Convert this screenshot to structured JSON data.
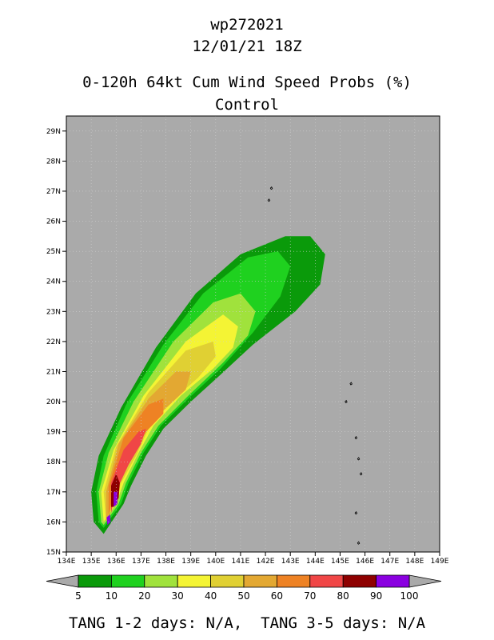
{
  "header": {
    "storm_id": "wp272021",
    "datetime": "12/01/21 18Z",
    "product": "0-120h 64kt Cum Wind Speed Probs (%)",
    "run": "Control"
  },
  "chart_data": {
    "type": "contour-map",
    "x_axis": {
      "range": [
        134,
        149
      ],
      "ticks": [
        "134E",
        "135E",
        "136E",
        "137E",
        "138E",
        "139E",
        "140E",
        "141E",
        "142E",
        "143E",
        "144E",
        "145E",
        "146E",
        "147E",
        "148E",
        "149E"
      ]
    },
    "y_axis": {
      "range": [
        15,
        29.5
      ],
      "ticks": [
        "15N",
        "16N",
        "17N",
        "18N",
        "19N",
        "20N",
        "21N",
        "22N",
        "23N",
        "24N",
        "25N",
        "26N",
        "27N",
        "28N",
        "29N"
      ]
    },
    "background_color": "#aaaaaa",
    "legend": {
      "placement": "bottom",
      "levels": [
        5,
        10,
        20,
        30,
        40,
        50,
        60,
        70,
        80,
        90,
        100
      ],
      "colors": [
        "#0a9a0a",
        "#1fd11f",
        "#a0e23c",
        "#f4f434",
        "#e0d033",
        "#e3a832",
        "#ee8224",
        "#f04646",
        "#8e0000",
        "#8a00e0"
      ]
    },
    "contours": [
      {
        "level": 5,
        "polygon": [
          [
            135.1,
            16.0
          ],
          [
            135.0,
            17.0
          ],
          [
            135.3,
            18.2
          ],
          [
            136.2,
            19.8
          ],
          [
            137.6,
            21.8
          ],
          [
            139.2,
            23.6
          ],
          [
            141.0,
            24.9
          ],
          [
            142.8,
            25.5
          ],
          [
            143.8,
            25.5
          ],
          [
            144.4,
            24.9
          ],
          [
            144.2,
            23.9
          ],
          [
            143.2,
            23.0
          ],
          [
            141.5,
            21.9
          ],
          [
            140.2,
            20.9
          ],
          [
            139.0,
            20.0
          ],
          [
            137.9,
            19.1
          ],
          [
            137.2,
            18.2
          ],
          [
            136.6,
            17.2
          ],
          [
            136.3,
            16.6
          ],
          [
            135.5,
            15.6
          ]
        ]
      },
      {
        "level": 10,
        "polygon": [
          [
            135.3,
            16.0
          ],
          [
            135.2,
            17.0
          ],
          [
            135.5,
            18.2
          ],
          [
            136.4,
            19.9
          ],
          [
            137.9,
            21.9
          ],
          [
            139.5,
            23.6
          ],
          [
            141.3,
            24.8
          ],
          [
            142.5,
            25.0
          ],
          [
            143.0,
            24.5
          ],
          [
            142.6,
            23.5
          ],
          [
            141.5,
            22.3
          ],
          [
            140.2,
            21.1
          ],
          [
            138.9,
            20.1
          ],
          [
            137.8,
            19.2
          ],
          [
            137.1,
            18.3
          ],
          [
            136.5,
            17.3
          ],
          [
            136.2,
            16.6
          ],
          [
            135.5,
            15.8
          ]
        ]
      },
      {
        "level": 20,
        "polygon": [
          [
            135.4,
            16.0
          ],
          [
            135.3,
            17.0
          ],
          [
            135.7,
            18.3
          ],
          [
            136.7,
            20.0
          ],
          [
            138.3,
            22.0
          ],
          [
            139.9,
            23.3
          ],
          [
            141.0,
            23.6
          ],
          [
            141.6,
            23.0
          ],
          [
            141.3,
            22.2
          ],
          [
            140.3,
            21.3
          ],
          [
            138.9,
            20.2
          ],
          [
            137.7,
            19.2
          ],
          [
            137.0,
            18.3
          ],
          [
            136.4,
            17.3
          ],
          [
            136.1,
            16.6
          ],
          [
            135.5,
            15.9
          ]
        ]
      },
      {
        "level": 30,
        "polygon": [
          [
            135.5,
            16.0
          ],
          [
            135.4,
            17.0
          ],
          [
            135.9,
            18.4
          ],
          [
            137.1,
            20.2
          ],
          [
            138.8,
            22.0
          ],
          [
            140.3,
            22.9
          ],
          [
            140.9,
            22.5
          ],
          [
            140.7,
            21.8
          ],
          [
            139.9,
            21.1
          ],
          [
            138.6,
            20.2
          ],
          [
            137.5,
            19.2
          ],
          [
            136.9,
            18.3
          ],
          [
            136.3,
            17.3
          ],
          [
            136.0,
            16.6
          ],
          [
            135.5,
            16.0
          ]
        ]
      },
      {
        "level": 40,
        "polygon": [
          [
            135.6,
            16.0
          ],
          [
            135.5,
            17.0
          ],
          [
            136.0,
            18.5
          ],
          [
            137.3,
            20.3
          ],
          [
            138.8,
            21.7
          ],
          [
            139.9,
            22.0
          ],
          [
            140.0,
            21.5
          ],
          [
            139.3,
            20.8
          ],
          [
            138.2,
            20.0
          ],
          [
            137.3,
            19.1
          ],
          [
            136.8,
            18.2
          ],
          [
            136.2,
            17.3
          ],
          [
            135.9,
            16.6
          ],
          [
            135.6,
            16.0
          ]
        ]
      },
      {
        "level": 50,
        "polygon": [
          [
            135.6,
            16.0
          ],
          [
            135.6,
            17.0
          ],
          [
            136.1,
            18.6
          ],
          [
            137.3,
            20.1
          ],
          [
            138.4,
            21.0
          ],
          [
            139.0,
            21.0
          ],
          [
            138.8,
            20.4
          ],
          [
            137.9,
            19.7
          ],
          [
            137.1,
            18.9
          ],
          [
            136.6,
            18.1
          ],
          [
            136.1,
            17.2
          ],
          [
            135.8,
            16.6
          ]
        ]
      },
      {
        "level": 60,
        "polygon": [
          [
            135.7,
            16.1
          ],
          [
            135.7,
            17.2
          ],
          [
            136.3,
            18.8
          ],
          [
            137.3,
            19.9
          ],
          [
            137.9,
            20.1
          ],
          [
            137.9,
            19.6
          ],
          [
            137.2,
            19.0
          ],
          [
            136.6,
            18.1
          ],
          [
            136.1,
            17.2
          ],
          [
            135.8,
            16.6
          ]
        ]
      },
      {
        "level": 70,
        "polygon": [
          [
            135.8,
            16.3
          ],
          [
            135.8,
            17.3
          ],
          [
            136.3,
            18.4
          ],
          [
            136.9,
            19.0
          ],
          [
            137.2,
            19.1
          ],
          [
            137.0,
            18.6
          ],
          [
            136.5,
            17.9
          ],
          [
            136.1,
            17.2
          ],
          [
            135.9,
            16.7
          ]
        ]
      },
      {
        "level": 80,
        "polygon": [
          [
            135.8,
            16.5
          ],
          [
            135.8,
            17.2
          ],
          [
            136.0,
            17.6
          ],
          [
            136.15,
            17.3
          ],
          [
            136.1,
            16.8
          ],
          [
            135.9,
            16.5
          ]
        ]
      },
      {
        "level": 90,
        "polygon": [
          [
            135.9,
            16.5
          ],
          [
            135.9,
            17.0
          ],
          [
            136.05,
            17.0
          ],
          [
            136.05,
            16.6
          ]
        ]
      },
      {
        "level": 100,
        "polygon": [
          [
            135.65,
            15.9
          ],
          [
            135.62,
            16.15
          ],
          [
            135.75,
            16.25
          ],
          [
            135.78,
            16.0
          ]
        ]
      }
    ]
  },
  "footer": {
    "text": "TANG 1-2 days: N/A,  TANG 3-5 days: N/A"
  }
}
